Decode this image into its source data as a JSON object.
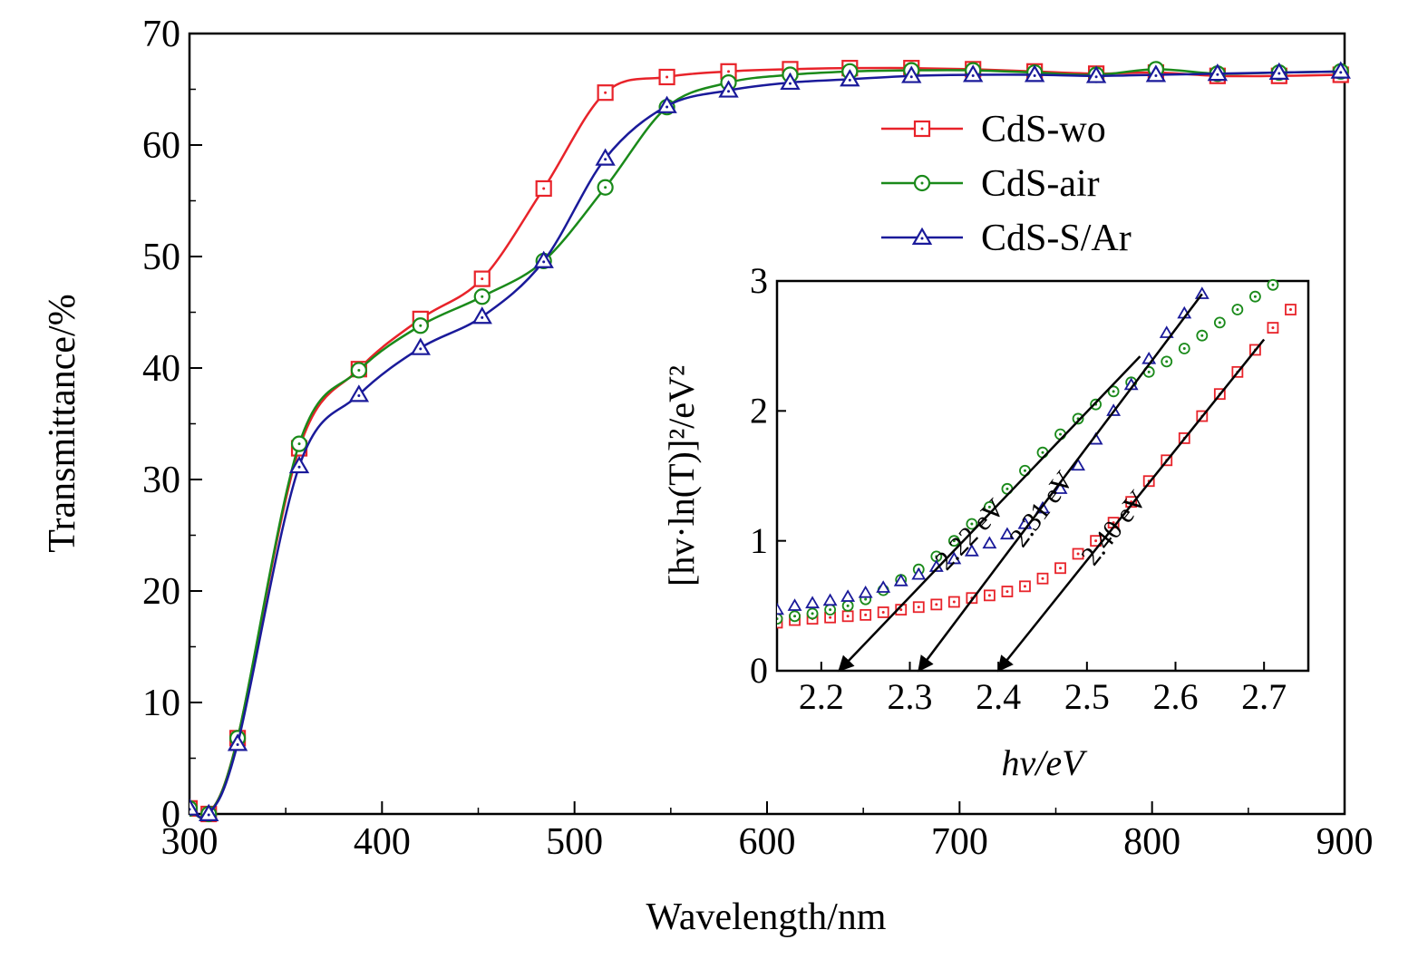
{
  "chart_data": [
    {
      "type": "line",
      "xlabel": "Wavelength/nm",
      "ylabel": "Transmittance/%",
      "x": [
        300,
        310,
        325,
        357,
        388,
        420,
        452,
        484,
        516,
        548,
        580,
        612,
        643,
        675,
        707,
        739,
        771,
        802,
        834,
        866,
        898
      ],
      "series": [
        {
          "name": "CdS-wo",
          "color": "#e8232a",
          "marker": "square",
          "values": [
            0.5,
            0,
            6.8,
            32.8,
            39.9,
            44.4,
            48,
            56.1,
            64.7,
            66.1,
            66.6,
            66.8,
            66.9,
            66.9,
            66.8,
            66.6,
            66.4,
            66.5,
            66.2,
            66.2,
            66.3
          ]
        },
        {
          "name": "CdS-air",
          "color": "#1a8a1a",
          "marker": "circle",
          "values": [
            0.5,
            0,
            6.8,
            33.2,
            39.8,
            43.8,
            46.4,
            49.6,
            56.2,
            63.4,
            65.6,
            66.3,
            66.6,
            66.7,
            66.7,
            66.5,
            66.3,
            66.8,
            66.4,
            66.5,
            66.6
          ]
        },
        {
          "name": "CdS-S/Ar",
          "color": "#1a1a9a",
          "marker": "triangle",
          "values": [
            0.5,
            0,
            6.3,
            31.2,
            37.6,
            41.8,
            44.6,
            49.6,
            58.8,
            63.5,
            64.9,
            65.6,
            65.9,
            66.2,
            66.3,
            66.3,
            66.2,
            66.3,
            66.4,
            66.5,
            66.6
          ]
        }
      ],
      "xlim": [
        300,
        900
      ],
      "ylim": [
        0,
        70
      ],
      "xticks": [
        300,
        400,
        500,
        600,
        700,
        800,
        900
      ],
      "yticks": [
        0,
        10,
        20,
        30,
        40,
        50,
        60,
        70
      ],
      "xminorticks": [
        350,
        450,
        550,
        650,
        750,
        850
      ],
      "yminorticks": [
        5,
        15,
        25,
        35,
        45,
        55,
        65
      ],
      "legend": "upper right",
      "smooth": true
    },
    {
      "type": "scatter",
      "xlabel": "hv/eV",
      "ylabel": "[hv·ln(T)]²/eV²",
      "x": [
        2.15,
        2.17,
        2.19,
        2.21,
        2.23,
        2.25,
        2.27,
        2.29,
        2.31,
        2.33,
        2.35,
        2.37,
        2.39,
        2.41,
        2.43,
        2.45,
        2.47,
        2.49,
        2.51,
        2.53,
        2.55,
        2.57,
        2.59,
        2.61,
        2.63,
        2.65,
        2.67,
        2.69,
        2.71,
        2.73
      ],
      "series": [
        {
          "name": "CdS-wo",
          "color": "#e8232a",
          "marker": "square",
          "values": [
            0.37,
            0.39,
            0.4,
            0.41,
            0.42,
            0.43,
            0.45,
            0.47,
            0.49,
            0.51,
            0.53,
            0.56,
            0.58,
            0.61,
            0.65,
            0.71,
            0.79,
            0.9,
            1.0,
            1.14,
            1.3,
            1.46,
            1.62,
            1.79,
            1.96,
            2.13,
            2.3,
            2.47,
            2.64,
            2.78
          ]
        },
        {
          "name": "CdS-air",
          "color": "#1a8a1a",
          "marker": "circle",
          "values": [
            0.4,
            0.42,
            0.44,
            0.47,
            0.5,
            0.55,
            0.62,
            0.7,
            0.78,
            0.88,
            1.0,
            1.13,
            1.26,
            1.4,
            1.54,
            1.68,
            1.82,
            1.94,
            2.05,
            2.15,
            2.22,
            2.3,
            2.38,
            2.48,
            2.58,
            2.68,
            2.78,
            2.88,
            2.97,
            null
          ]
        },
        {
          "name": "CdS-S/Ar",
          "color": "#1a1a9a",
          "marker": "triangle",
          "values": [
            0.47,
            0.5,
            0.52,
            0.54,
            0.57,
            0.6,
            0.64,
            0.69,
            0.74,
            0.8,
            0.86,
            0.92,
            0.98,
            1.05,
            1.13,
            1.25,
            1.4,
            1.58,
            1.78,
            2.0,
            2.2,
            2.4,
            2.6,
            2.75,
            2.9,
            null,
            null,
            null,
            null,
            null
          ]
        }
      ],
      "xlim": [
        2.15,
        2.75
      ],
      "ylim": [
        0,
        3
      ],
      "xticks": [
        2.2,
        2.3,
        2.4,
        2.5,
        2.6,
        2.7
      ],
      "yticks": [
        0,
        1,
        2,
        3
      ],
      "annotations": [
        {
          "text": "2.22 eV",
          "x": [
            2.56,
            2.22
          ],
          "y": [
            2.42,
            0
          ]
        },
        {
          "text": "2.31 eV",
          "x": [
            2.63,
            2.31
          ],
          "y": [
            2.9,
            0
          ]
        },
        {
          "text": "2.40 eV",
          "x": [
            2.7,
            2.4
          ],
          "y": [
            2.55,
            0
          ]
        }
      ]
    }
  ]
}
